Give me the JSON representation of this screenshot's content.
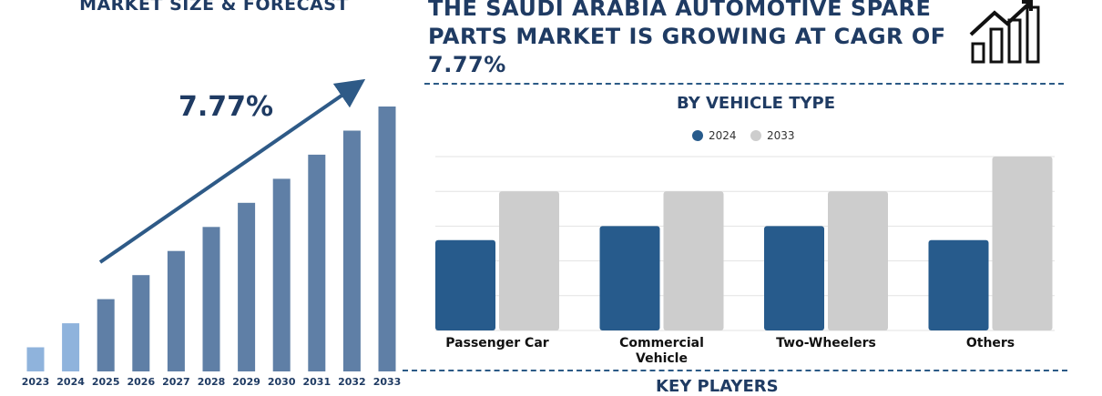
{
  "left_panel": {
    "title": "MARKET SIZE & FORECAST",
    "cagr_label": "7.77%",
    "bar_values": [
      1,
      2,
      3,
      4,
      5,
      6,
      7,
      8,
      9,
      10,
      11
    ],
    "years": [
      "2023",
      "2024",
      "2025",
      "2026",
      "2027",
      "2028",
      "2029",
      "2030",
      "2031",
      "2032",
      "2033"
    ]
  },
  "headline": "THE SAUDI ARABIA AUTOMOTIVE SPARE PARTS MARKET IS GROWING AT CAGR OF 7.77%",
  "footer": {
    "key_players": "KEY PLAYERS"
  },
  "colors": {
    "dark_blue": "#275b8c",
    "grey": "#cdcdcd",
    "light_blue": "#8fb3dc",
    "steel": "#5f7fa6"
  },
  "chart_data": {
    "type": "bar",
    "title": "BY VEHICLE TYPE",
    "categories": [
      "Passenger Car",
      "Commercial Vehicle",
      "Two-Wheelers",
      "Others"
    ],
    "category_lines": [
      [
        "Passenger Car"
      ],
      [
        "Commercial",
        "Vehicle"
      ],
      [
        "Two-Wheelers"
      ],
      [
        "Others"
      ]
    ],
    "series": [
      {
        "name": "2024",
        "values": [
          26,
          30,
          30,
          26
        ]
      },
      {
        "name": "2033",
        "values": [
          40,
          40,
          40,
          50
        ]
      }
    ],
    "ylim": [
      0,
      50
    ],
    "grid": true,
    "legend": "top-center"
  }
}
